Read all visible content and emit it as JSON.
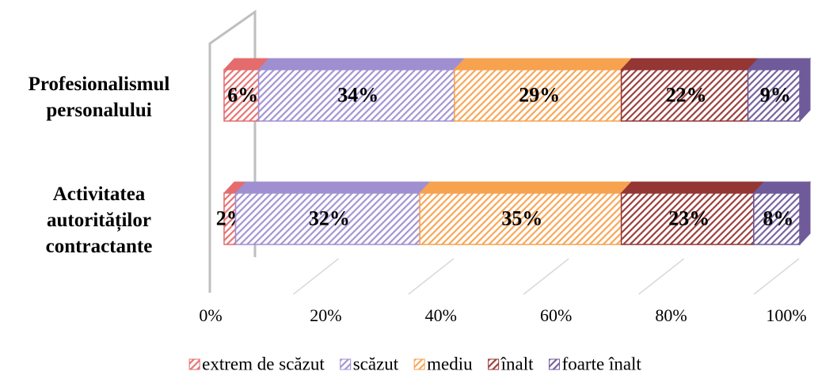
{
  "chart_data": {
    "type": "stacked_bar_3d",
    "categories": [
      "Profesionalismul personalului",
      "Activitatea autorităților contractante"
    ],
    "series": [
      {
        "name": "extrem de scăzut",
        "color": "#e46c6c",
        "values": [
          6,
          2
        ],
        "value_labels": [
          "6%",
          "2%"
        ]
      },
      {
        "name": "scăzut",
        "color": "#9f8fd0",
        "values": [
          34,
          32
        ],
        "value_labels": [
          "34%",
          "32%"
        ]
      },
      {
        "name": "mediu",
        "color": "#f7a24f",
        "values": [
          29,
          35
        ],
        "value_labels": [
          "29%",
          "35%"
        ]
      },
      {
        "name": "înalt",
        "color": "#943634",
        "values": [
          22,
          23
        ],
        "value_labels": [
          "22%",
          "23%"
        ]
      },
      {
        "name": "foarte înalt",
        "color": "#6f5a9a",
        "values": [
          9,
          8
        ],
        "value_labels": [
          "9%",
          "8%"
        ]
      }
    ],
    "xlim": [
      0,
      100
    ],
    "xticks": [
      {
        "value": 0,
        "label": "0%"
      },
      {
        "value": 20,
        "label": "20%"
      },
      {
        "value": 40,
        "label": "40%"
      },
      {
        "value": 60,
        "label": "60%"
      },
      {
        "value": 80,
        "label": "80%"
      },
      {
        "value": 100,
        "label": "100%"
      }
    ],
    "grid": true,
    "legend": "bottom"
  }
}
